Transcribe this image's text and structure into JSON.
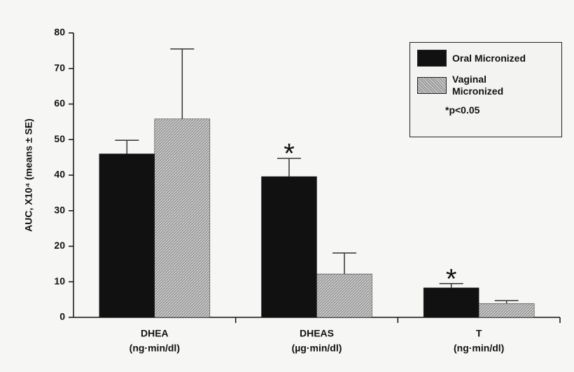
{
  "chart_data": {
    "type": "bar",
    "y_label": "AUC, X10⁴ (means ± SE)",
    "categories": [
      "DHEA",
      "DHEAS",
      "T"
    ],
    "category_units": [
      "(ng·min/dl)",
      "(µg·min/dl)",
      "(ng·min/dl)"
    ],
    "series": [
      {
        "name": "Oral Micronized",
        "color": "#111111",
        "values": [
          46,
          39.6,
          8.3
        ],
        "errors": [
          3.8,
          5.1,
          1.2
        ]
      },
      {
        "name": "Vaginal Micronized",
        "color": "#9a9a9a",
        "values": [
          55.8,
          12.2,
          3.9
        ],
        "errors": [
          19.7,
          5.9,
          0.8
        ]
      }
    ],
    "annotations": [
      {
        "text": "*",
        "category": "DHEAS",
        "series": "Oral Micronized"
      },
      {
        "text": "*",
        "category": "T",
        "series": "Oral Micronized"
      }
    ],
    "legend_note": "*p<0.05",
    "ylim": [
      0,
      80
    ],
    "yticks": [
      0,
      10,
      20,
      30,
      40,
      50,
      60,
      70,
      80
    ],
    "grid": false,
    "legend_position": "upper right"
  }
}
